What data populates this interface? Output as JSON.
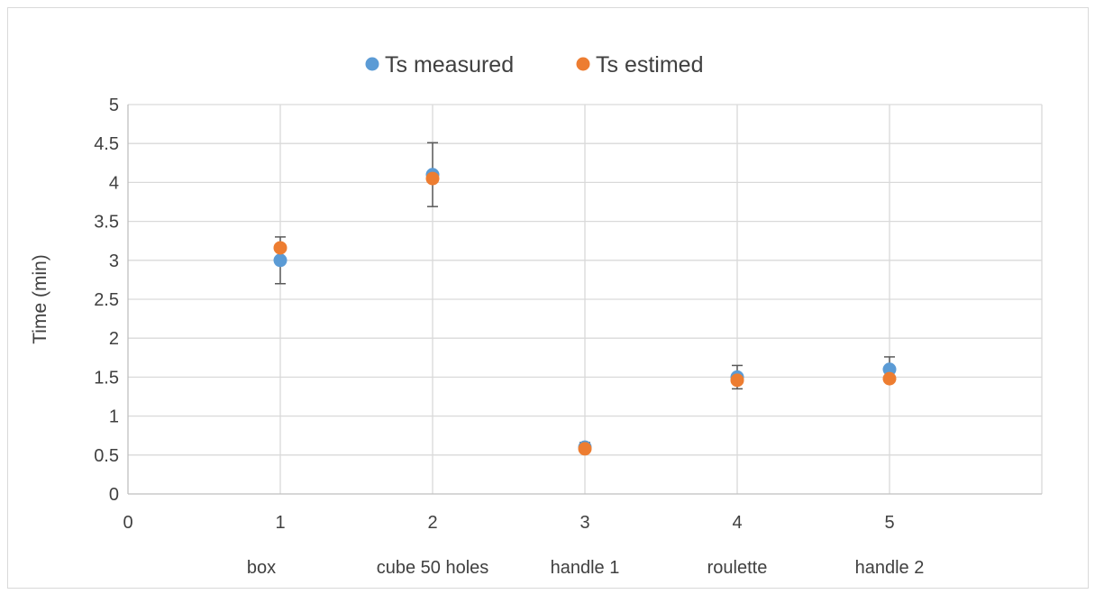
{
  "chart_data": {
    "type": "scatter",
    "title": "",
    "xlabel": "",
    "ylabel": "Time (min)",
    "xlim": [
      0,
      6
    ],
    "ylim": [
      0,
      5
    ],
    "x_ticks": [
      "0",
      "1",
      "2",
      "3",
      "4",
      "5"
    ],
    "y_ticks": [
      "0",
      "0.5",
      "1",
      "1.5",
      "2",
      "2.5",
      "3",
      "3.5",
      "4",
      "4.5",
      "5"
    ],
    "categories": [
      "box",
      "cube 50 holes",
      "handle 1",
      "roulette",
      "handle 2"
    ],
    "x": [
      1,
      2,
      3,
      4,
      5
    ],
    "grid": true,
    "legend_position": "top",
    "series": [
      {
        "name": "Ts measured",
        "color": "#5B9BD5",
        "values": [
          3.0,
          4.1,
          0.6,
          1.5,
          1.6
        ],
        "error": [
          0.3,
          0.41,
          0.06,
          0.15,
          0.16
        ]
      },
      {
        "name": "Ts estimed",
        "color": "#ED7D31",
        "values": [
          3.16,
          4.05,
          0.58,
          1.46,
          1.48
        ]
      }
    ]
  }
}
